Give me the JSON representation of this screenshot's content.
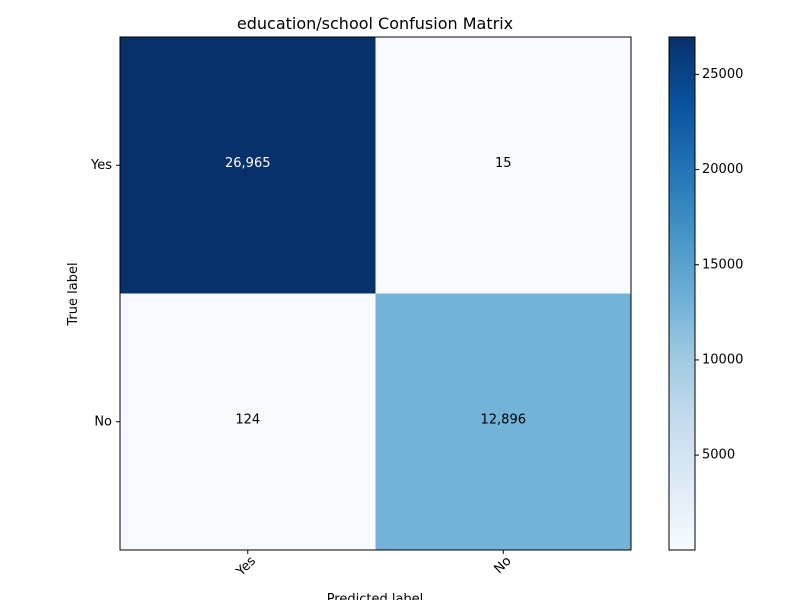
{
  "chart_data": {
    "type": "heatmap",
    "title": "education/school Confusion Matrix",
    "xlabel": "Predicted label",
    "ylabel": "True label",
    "x_categories": [
      "Yes",
      "No"
    ],
    "y_categories": [
      "Yes",
      "No"
    ],
    "values": [
      [
        26965,
        15
      ],
      [
        124,
        12896
      ]
    ],
    "value_labels": [
      [
        "26,965",
        "15"
      ],
      [
        "124",
        "12,896"
      ]
    ],
    "colormap": "Blues",
    "colorbar": {
      "range": [
        15,
        26965
      ],
      "ticks": [
        5000,
        10000,
        15000,
        20000,
        25000
      ],
      "tick_labels": [
        "5000",
        "10000",
        "15000",
        "20000",
        "25000"
      ]
    },
    "grid": false,
    "legend": "none"
  }
}
